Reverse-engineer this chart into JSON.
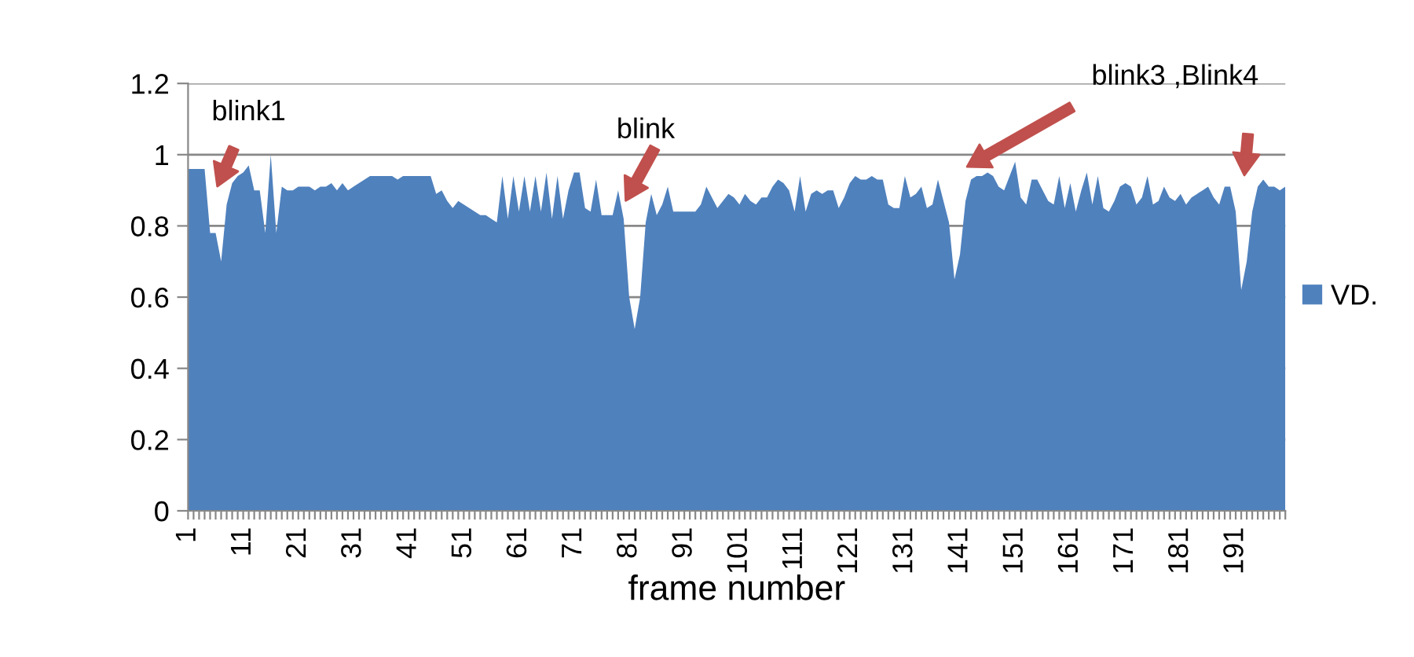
{
  "chart_data": {
    "type": "area",
    "xlabel": "frame number",
    "categories": [
      "1",
      null,
      null,
      null,
      null,
      null,
      null,
      null,
      null,
      null,
      "11",
      null,
      null,
      null,
      null,
      null,
      null,
      null,
      null,
      null,
      "21",
      null,
      null,
      null,
      null,
      null,
      null,
      null,
      null,
      null,
      "31",
      null,
      null,
      null,
      null,
      null,
      null,
      null,
      null,
      null,
      "41",
      null,
      null,
      null,
      null,
      null,
      null,
      null,
      null,
      null,
      "51",
      null,
      null,
      null,
      null,
      null,
      null,
      null,
      null,
      null,
      "61",
      null,
      null,
      null,
      null,
      null,
      null,
      null,
      null,
      null,
      "71",
      null,
      null,
      null,
      null,
      null,
      null,
      null,
      null,
      null,
      "81",
      null,
      null,
      null,
      null,
      null,
      null,
      null,
      null,
      null,
      "91",
      null,
      null,
      null,
      null,
      null,
      null,
      null,
      null,
      null,
      "101",
      null,
      null,
      null,
      null,
      null,
      null,
      null,
      null,
      null,
      "111",
      null,
      null,
      null,
      null,
      null,
      null,
      null,
      null,
      null,
      "121",
      null,
      null,
      null,
      null,
      null,
      null,
      null,
      null,
      null,
      "131",
      null,
      null,
      null,
      null,
      null,
      null,
      null,
      null,
      null,
      "141",
      null,
      null,
      null,
      null,
      null,
      null,
      null,
      null,
      null,
      "151",
      null,
      null,
      null,
      null,
      null,
      null,
      null,
      null,
      null,
      "161",
      null,
      null,
      null,
      null,
      null,
      null,
      null,
      null,
      null,
      "171",
      null,
      null,
      null,
      null,
      null,
      null,
      null,
      null,
      null,
      "181",
      null,
      null,
      null,
      null,
      null,
      null,
      null,
      null,
      null,
      "191",
      null,
      null,
      null,
      null,
      null,
      null,
      null,
      null,
      null
    ],
    "series": [
      {
        "name": "VD.",
        "color": "#4f81bd",
        "values": [
          0.96,
          0.96,
          0.96,
          0.96,
          0.78,
          0.78,
          0.7,
          0.86,
          0.92,
          0.94,
          0.95,
          0.97,
          0.9,
          0.9,
          0.78,
          1.0,
          0.78,
          0.91,
          0.9,
          0.9,
          0.91,
          0.91,
          0.91,
          0.9,
          0.91,
          0.91,
          0.92,
          0.9,
          0.92,
          0.9,
          0.91,
          0.92,
          0.93,
          0.94,
          0.94,
          0.94,
          0.94,
          0.94,
          0.93,
          0.94,
          0.94,
          0.94,
          0.94,
          0.94,
          0.94,
          0.89,
          0.9,
          0.87,
          0.85,
          0.87,
          0.86,
          0.85,
          0.84,
          0.83,
          0.83,
          0.82,
          0.81,
          0.94,
          0.82,
          0.94,
          0.84,
          0.94,
          0.84,
          0.94,
          0.84,
          0.95,
          0.82,
          0.94,
          0.82,
          0.9,
          0.95,
          0.95,
          0.85,
          0.84,
          0.93,
          0.83,
          0.83,
          0.83,
          0.9,
          0.82,
          0.6,
          0.51,
          0.6,
          0.81,
          0.89,
          0.83,
          0.86,
          0.91,
          0.84,
          0.84,
          0.84,
          0.84,
          0.84,
          0.86,
          0.91,
          0.88,
          0.85,
          0.87,
          0.89,
          0.88,
          0.86,
          0.89,
          0.87,
          0.86,
          0.88,
          0.88,
          0.91,
          0.93,
          0.92,
          0.9,
          0.84,
          0.94,
          0.84,
          0.89,
          0.9,
          0.89,
          0.9,
          0.9,
          0.85,
          0.88,
          0.92,
          0.94,
          0.93,
          0.93,
          0.94,
          0.93,
          0.93,
          0.86,
          0.85,
          0.85,
          0.94,
          0.88,
          0.89,
          0.91,
          0.85,
          0.86,
          0.93,
          0.87,
          0.81,
          0.65,
          0.72,
          0.87,
          0.93,
          0.94,
          0.94,
          0.95,
          0.94,
          0.91,
          0.9,
          0.94,
          0.98,
          0.88,
          0.86,
          0.93,
          0.93,
          0.9,
          0.87,
          0.86,
          0.94,
          0.85,
          0.92,
          0.84,
          0.9,
          0.95,
          0.86,
          0.94,
          0.85,
          0.84,
          0.87,
          0.91,
          0.92,
          0.91,
          0.86,
          0.88,
          0.94,
          0.86,
          0.87,
          0.91,
          0.88,
          0.87,
          0.89,
          0.86,
          0.88,
          0.89,
          0.9,
          0.91,
          0.88,
          0.86,
          0.91,
          0.91,
          0.84,
          0.62,
          0.7,
          0.84,
          0.91,
          0.93,
          0.91,
          0.91,
          0.9,
          0.91
        ]
      }
    ],
    "ylim": [
      0,
      1.2
    ],
    "yticks": [
      0,
      0.2,
      0.4,
      0.6,
      0.8,
      1,
      1.2
    ],
    "grid": "y",
    "legend": "right",
    "annotations": [
      "blink1",
      "blink",
      "blink3 ,Blink4"
    ]
  }
}
